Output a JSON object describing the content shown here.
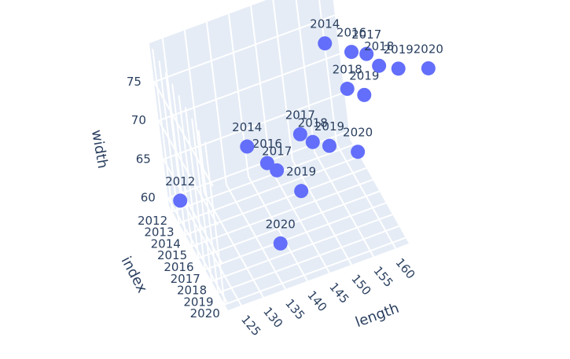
{
  "chart_data": {
    "type": "scatter3d",
    "xaxis_title": "length",
    "yaxis_title": "index",
    "zaxis_title": "width",
    "x": [
      124,
      135.7,
      142.7,
      140.2,
      139.4,
      137.7,
      146.2,
      147.6,
      150.0,
      154.9,
      156.5,
      158.9,
      157.3,
      160.6,
      162.7,
      164.0,
      167.0,
      172.4
    ],
    "y": [
      2012,
      2020,
      2019,
      2017,
      2016,
      2014,
      2017,
      2018,
      2019,
      2020,
      2018,
      2019,
      2014,
      2016,
      2017,
      2018,
      2019,
      2020
    ],
    "z": [
      60,
      64.0,
      67.8,
      68.0,
      67.6,
      67.1,
      71.4,
      71.6,
      72.1,
      71.8,
      76.6,
      76.8,
      76.3,
      77.5,
      78.3,
      78.0,
      78.5,
      78.9
    ],
    "text": [
      "2012",
      "2020",
      "2019",
      "2017",
      "2016",
      "2014",
      "2017",
      "2018",
      "2019",
      "2020",
      "2018",
      "2019",
      "2014",
      "2016",
      "2017",
      "2018",
      "2019",
      "2020"
    ],
    "color": "#636efa",
    "xlim": [
      122,
      163
    ],
    "ylim": [
      2011.5,
      2020.5
    ],
    "zlim": [
      59,
      80
    ],
    "xticks": [
      125,
      130,
      135,
      140,
      145,
      150,
      155,
      160
    ],
    "yticks": [
      2012,
      2013,
      2014,
      2015,
      2016,
      2017,
      2018,
      2019,
      2020
    ],
    "zticks": [
      60,
      65,
      70,
      75
    ],
    "grid": true
  }
}
